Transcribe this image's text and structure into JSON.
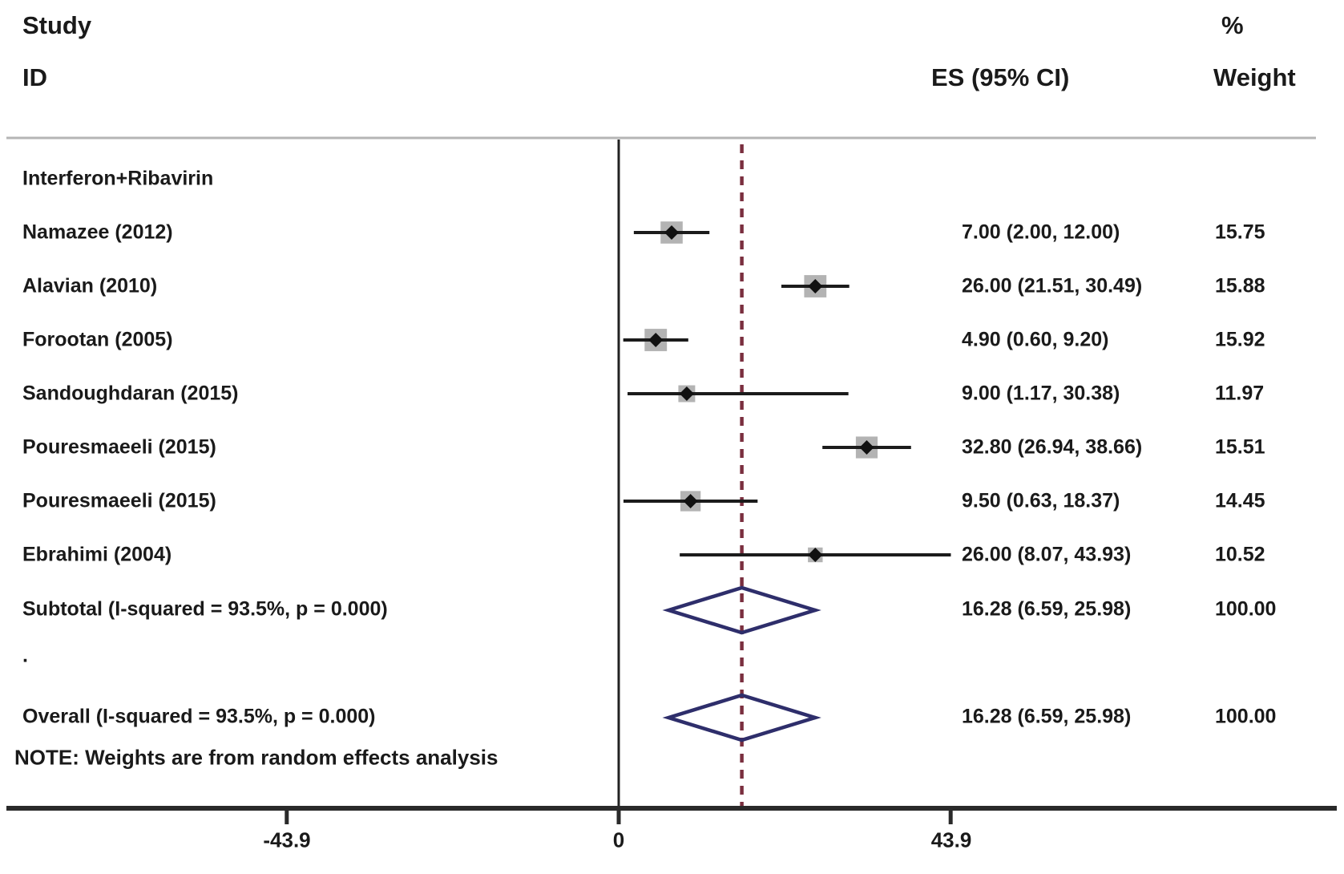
{
  "header": {
    "study_line1": "Study",
    "study_line2": "ID",
    "es_col": "ES (95% CI)",
    "pct_col": "%",
    "weight_col": "Weight"
  },
  "group_label": "Interferon+Ribavirin",
  "blank_row_marker": ".",
  "note": "NOTE: Weights are from random effects analysis",
  "colors": {
    "text": "#1a1a1a",
    "ci_line": "#1b1b1b",
    "marker": "#111111",
    "weight_box": "#b3b3b3",
    "diamond": "#2e2e6b",
    "dashed_line": "#7a2f3f",
    "axis": "#2a2a2a",
    "separator": "#b5b5b5"
  },
  "chart_data": {
    "type": "scatter",
    "subtype": "forest-plot",
    "title": "",
    "xlabel": "",
    "ylabel": "",
    "x_axis": {
      "ticks": [
        -43.9,
        0,
        43.9
      ],
      "tick_labels": [
        "-43.9",
        "0",
        "43.9"
      ],
      "zero_reference_line": 0,
      "overall_estimate_dashed_line": 16.28
    },
    "grid": false,
    "legend": false,
    "studies": [
      {
        "label": "Namazee (2012)",
        "es": 7.0,
        "ci_low": 2.0,
        "ci_high": 12.0,
        "es_text": "7.00 (2.00, 12.00)",
        "weight": 15.75,
        "weight_text": "15.75"
      },
      {
        "label": "Alavian (2010)",
        "es": 26.0,
        "ci_low": 21.51,
        "ci_high": 30.49,
        "es_text": "26.00 (21.51, 30.49)",
        "weight": 15.88,
        "weight_text": "15.88"
      },
      {
        "label": "Forootan (2005)",
        "es": 4.9,
        "ci_low": 0.6,
        "ci_high": 9.2,
        "es_text": "4.90 (0.60, 9.20)",
        "weight": 15.92,
        "weight_text": "15.92"
      },
      {
        "label": "Sandoughdaran (2015)",
        "es": 9.0,
        "ci_low": 1.17,
        "ci_high": 30.38,
        "es_text": "9.00 (1.17, 30.38)",
        "weight": 11.97,
        "weight_text": "11.97"
      },
      {
        "label": "Pouresmaeeli (2015)",
        "es": 32.8,
        "ci_low": 26.94,
        "ci_high": 38.66,
        "es_text": "32.80 (26.94, 38.66)",
        "weight": 15.51,
        "weight_text": "15.51"
      },
      {
        "label": "Pouresmaeeli (2015)",
        "es": 9.5,
        "ci_low": 0.63,
        "ci_high": 18.37,
        "es_text": "9.50 (0.63, 18.37)",
        "weight": 14.45,
        "weight_text": "14.45"
      },
      {
        "label": "Ebrahimi (2004)",
        "es": 26.0,
        "ci_low": 8.07,
        "ci_high": 43.93,
        "es_text": "26.00 (8.07, 43.93)",
        "weight": 10.52,
        "weight_text": "10.52"
      }
    ],
    "subtotal": {
      "label": "Subtotal  (I-squared = 93.5%, p = 0.000)",
      "es": 16.28,
      "ci_low": 6.59,
      "ci_high": 25.98,
      "es_text": "16.28 (6.59, 25.98)",
      "weight_text": "100.00"
    },
    "overall": {
      "label": "Overall  (I-squared = 93.5%, p = 0.000)",
      "es": 16.28,
      "ci_low": 6.59,
      "ci_high": 25.98,
      "es_text": "16.28 (6.59, 25.98)",
      "weight_text": "100.00"
    }
  }
}
